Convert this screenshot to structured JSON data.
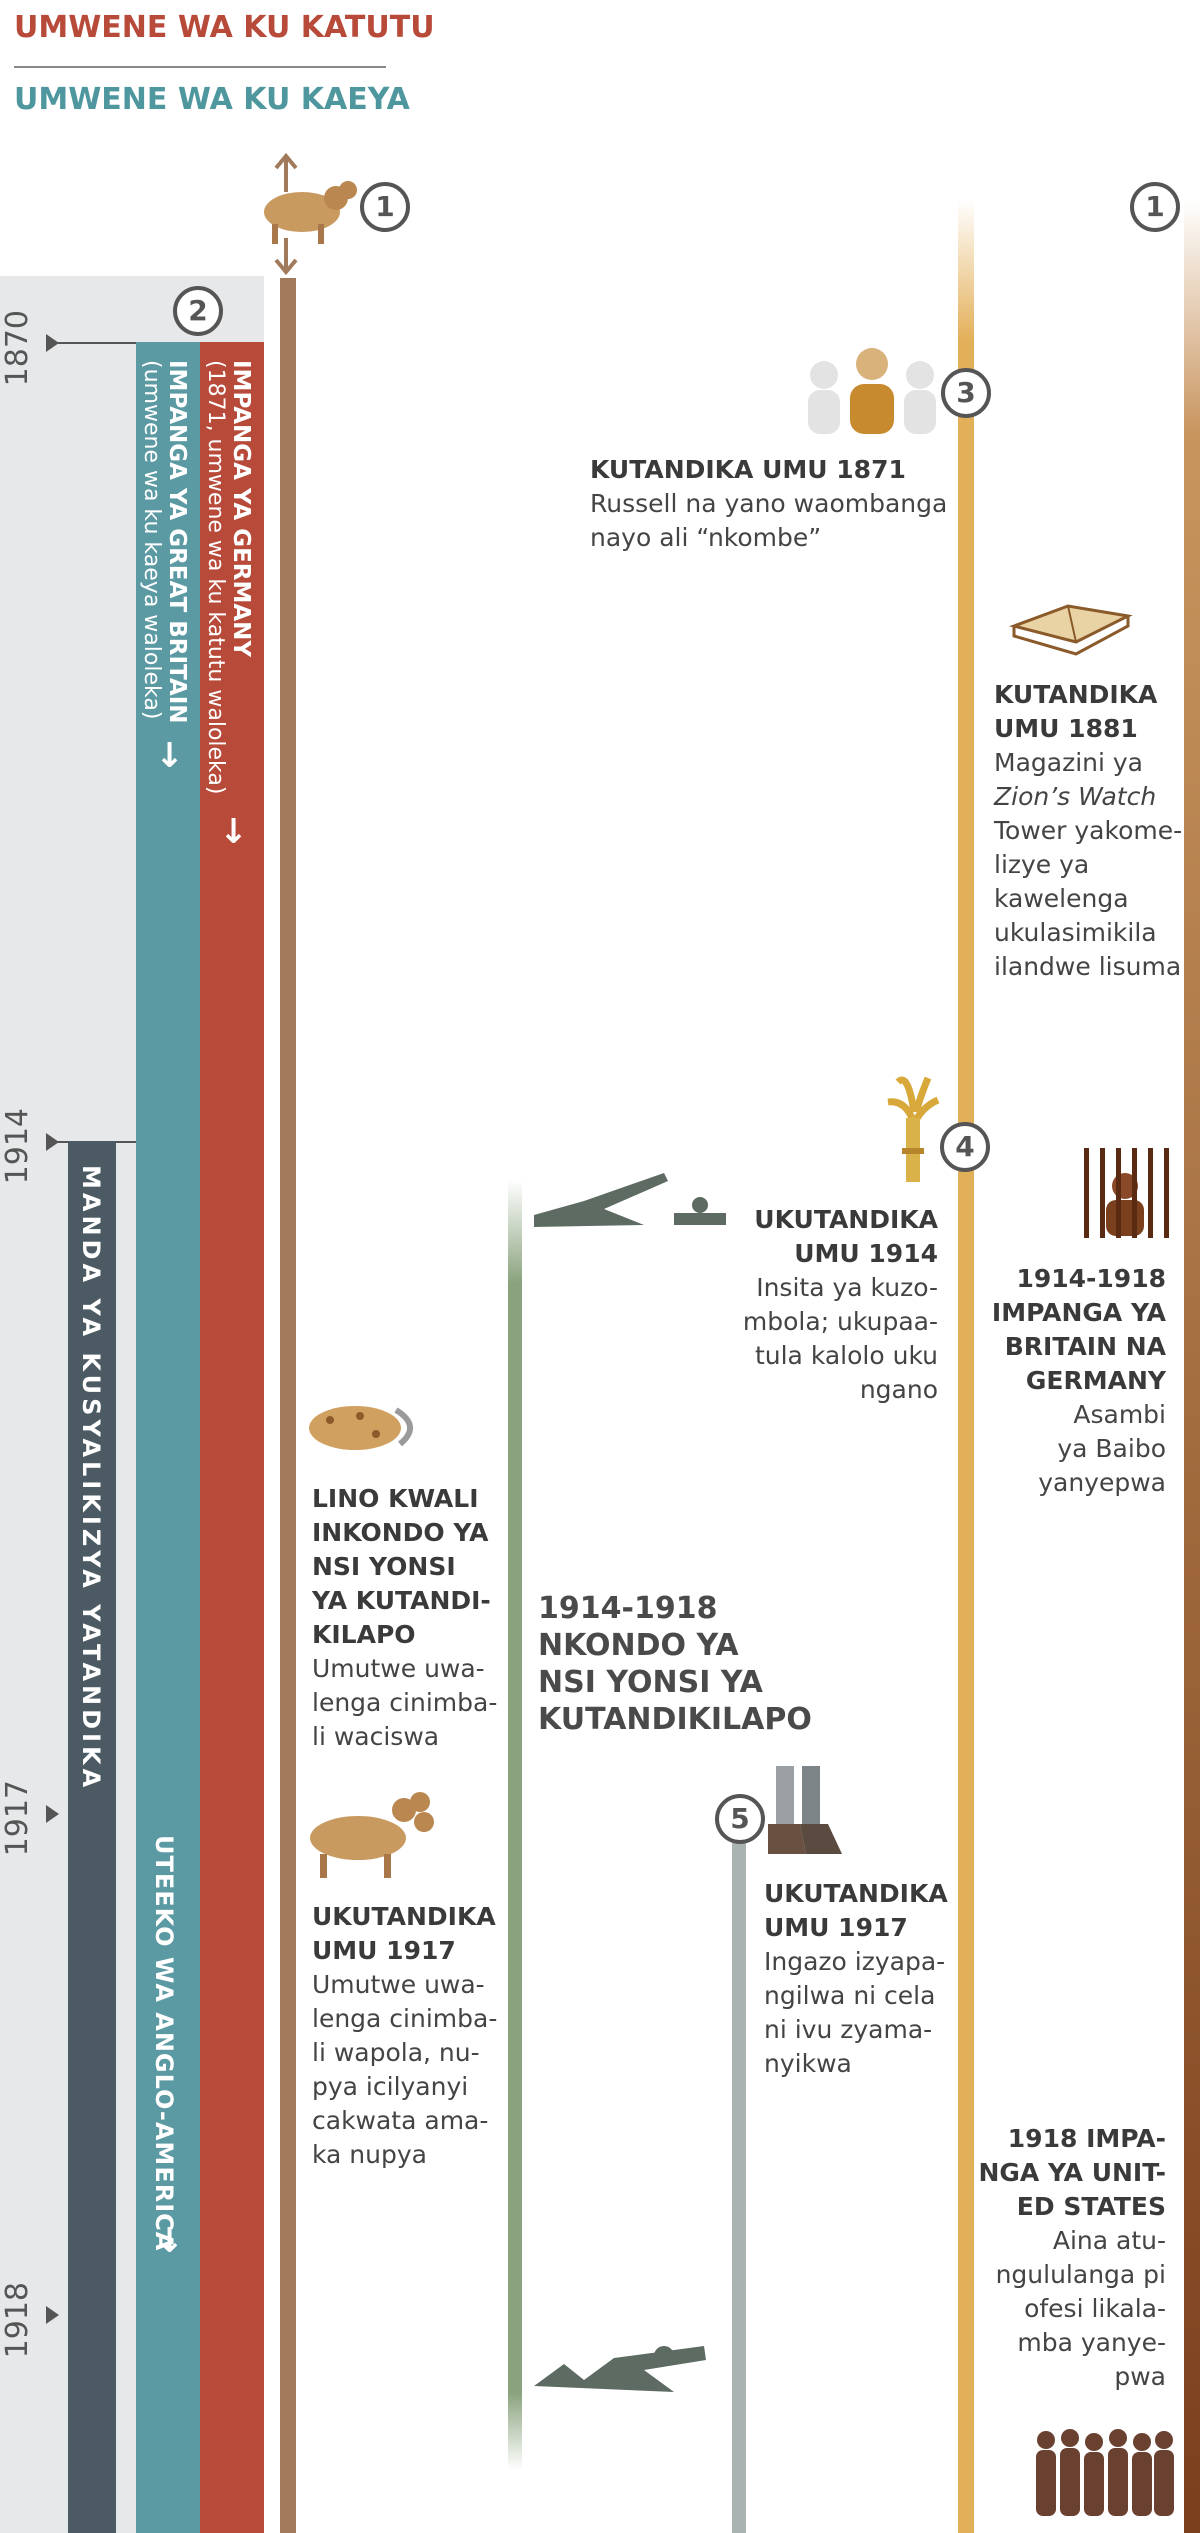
{
  "legend": {
    "top_label": "UMWENE WA KU KATUTU",
    "bottom_label": "UMWENE WA KU KAEYA"
  },
  "colors": {
    "red": "#b84a3a",
    "teal": "#5b9aa3",
    "slate": "#4c5b63",
    "tan": "#a07a5a",
    "green": "#8aa37e",
    "gray": "#a9b3b1",
    "gold": "#e3b05a",
    "brown": "#7a3f1c"
  },
  "years": [
    "1870",
    "1914",
    "1917",
    "1918"
  ],
  "markers": [
    "1",
    "1",
    "2",
    "3",
    "4",
    "5"
  ],
  "bands": {
    "germany": "IMPANGA YA GERMANY",
    "germany_sub": "(1871, umwene wa ku katutu waloleka)",
    "britain": "IMPANGA YA GREAT BRITAIN",
    "britain_sub": "(umwene wa ku kaeya waloleka)",
    "manda": "MANDA YA KUSYALIKIZYA YATANDIKA",
    "anglo": "UTEEKO WA ANGLO-AMERICA",
    "arrow": "→"
  },
  "entries": {
    "e1871": {
      "heading": "KUTANDIKA UMU 1871",
      "body": [
        "Russell na yano waombanga",
        "nayo ali “nkombe”"
      ]
    },
    "e1881": {
      "heading": [
        "KUTANDIKA",
        "UMU 1881"
      ],
      "body": [
        "Magazini ya",
        "Zion’s Watch",
        "Tower yakome-",
        "lizye ya",
        "kawelenga",
        "ukulasimikila",
        "ilandwe lisuma"
      ]
    },
    "e1914": {
      "heading": [
        "UKUTANDIKA",
        "UMU 1914"
      ],
      "body": [
        "Insita ya kuzo-",
        "mbola; ukupaa-",
        "tula kalolo uku",
        "ngano"
      ]
    },
    "e1914_1918_britain": {
      "heading": [
        "1914-1918",
        "IMPANGA YA",
        "BRITAIN NA",
        "GERMANY"
      ],
      "body": [
        "Asambi",
        "ya Baibo",
        "yanyepwa"
      ]
    },
    "e_lino": {
      "heading": [
        "LINO KWALI",
        "INKONDO YA",
        "NSI YONSI",
        "YA KUTANDI-",
        "KILAPO"
      ],
      "body": [
        "Umutwe uwa-",
        "lenga cinimba-",
        "li waciswa"
      ]
    },
    "e_war": {
      "heading": [
        "1914-1918",
        "NKONDO YA",
        "NSI YONSI YA",
        "KUTANDIKILAPO"
      ]
    },
    "e1917_beast": {
      "heading": [
        "UKUTANDIKA",
        "UMU 1917"
      ],
      "body": [
        "Umutwe uwa-",
        "lenga cinimba-",
        "li wapola, nu-",
        "pya icilyanyi",
        "cakwata ama-",
        "ka nupya"
      ]
    },
    "e1917_feet": {
      "heading": [
        "UKUTANDIKA",
        "UMU 1917"
      ],
      "body": [
        "Ingazo izyapa-",
        "ngilwa ni cela",
        "ni ivu zyama-",
        "nyikwa"
      ]
    },
    "e1918": {
      "heading": [
        "1918 IMPA-",
        "NGA YA UNIT-",
        "ED STATES"
      ],
      "body": [
        "Aina atu-",
        "ngululanga pi",
        "ofesi likala-",
        "mba yanye-",
        "pwa"
      ]
    }
  }
}
